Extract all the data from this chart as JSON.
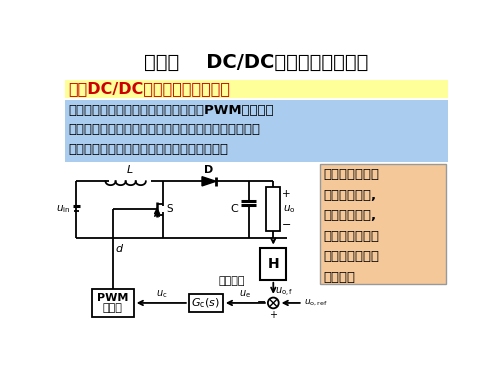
{
  "title": "第二章    DC/DC变换器的动态建模",
  "section_title": "一、DC/DC变换器闭环控制系统",
  "body_text": "电力电子系统一般由电力电子变换器、PWM调制器、\n反馈控制单元、驱动电路等组成。电力电子系统的静态\n和动态性能的好坏与反馈控制设计密切相关。",
  "side_text": "先建立被控对象\n动态数学模型,\n得到传递函数,\n再应用经典控制\n理论进行补偿网\n络设计。",
  "bg_color": "#ffffff",
  "title_color": "#000000",
  "section_bg": "#ffff99",
  "section_text_color": "#cc0000",
  "body_bg": "#aaccee",
  "side_bg": "#f5c89a",
  "circuit_color": "#000000",
  "fig_width": 5.0,
  "fig_height": 3.75,
  "dpi": 100
}
